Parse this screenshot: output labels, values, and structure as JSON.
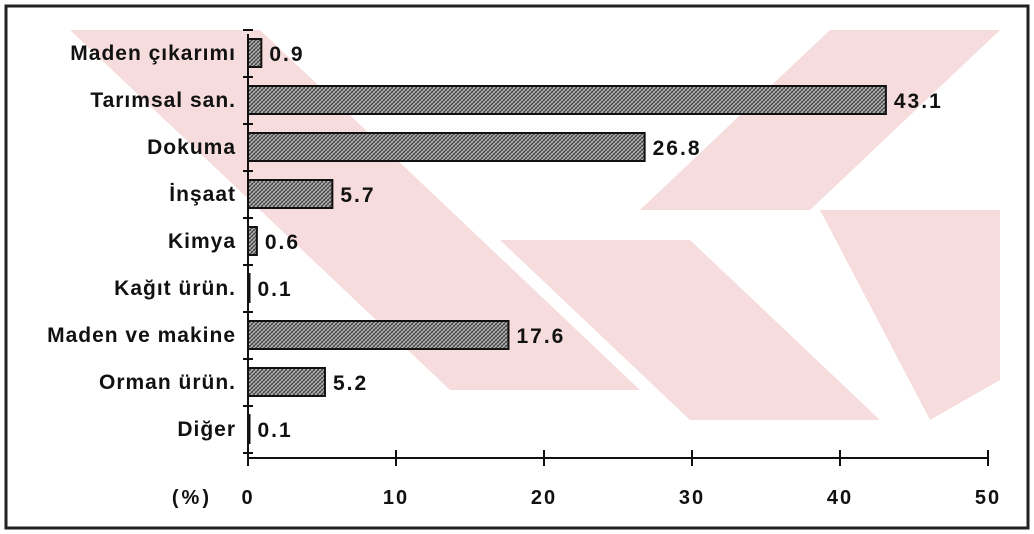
{
  "chart_data": {
    "type": "bar",
    "orientation": "horizontal",
    "categories": [
      "Maden çıkarımı",
      "Tarımsal san.",
      "Dokuma",
      "İnşaat",
      "Kimya",
      "Kağıt ürün.",
      "Maden ve makine",
      "Orman ürün.",
      "Diğer"
    ],
    "values": [
      0.9,
      43.1,
      26.8,
      5.7,
      0.6,
      0.1,
      17.6,
      5.2,
      0.1
    ],
    "value_labels": [
      "0.9",
      "43.1",
      "26.8",
      "5.7",
      "0.6",
      "0.1",
      "17.6",
      "5.2",
      "0.1"
    ],
    "xlim": [
      0,
      50
    ],
    "xticks": [
      0,
      10,
      20,
      30,
      40,
      50
    ],
    "xtick_labels": [
      "0",
      "10",
      "20",
      "30",
      "40",
      "50"
    ],
    "xlabel": "(%)",
    "grid": false,
    "legend": "none",
    "bar_fill": "crosshatch",
    "bar_color": "#9a9a9a",
    "bar_edge_color": "#111111",
    "background_watermark_color": "#f6dcdc",
    "frame_color": "#222222"
  }
}
